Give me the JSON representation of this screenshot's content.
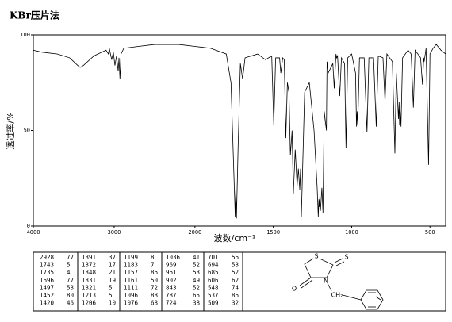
{
  "chart_data": {
    "type": "line",
    "title": "KBr压片法",
    "xlabel": "波数/cm⁻¹",
    "ylabel": "透过率/%",
    "xlim": [
      4000,
      400
    ],
    "xbreak": 2000,
    "xticks": [
      4000,
      3000,
      2000,
      1500,
      1000,
      500
    ],
    "ylim": [
      0,
      100
    ],
    "yticks": [
      0,
      50,
      100
    ],
    "color": "#000000",
    "x": [
      4000,
      3900,
      3700,
      3550,
      3450,
      3420,
      3380,
      3250,
      3100,
      3070,
      3060,
      3030,
      3010,
      2990,
      2970,
      2950,
      2940,
      2928,
      2915,
      2880,
      2700,
      2500,
      2200,
      2000,
      1900,
      1800,
      1770,
      1743,
      1739,
      1735,
      1725,
      1710,
      1696,
      1680,
      1600,
      1550,
      1510,
      1497,
      1485,
      1460,
      1452,
      1440,
      1430,
      1420,
      1410,
      1400,
      1391,
      1380,
      1372,
      1360,
      1348,
      1340,
      1331,
      1326,
      1321,
      1300,
      1270,
      1240,
      1220,
      1213,
      1209,
      1206,
      1203,
      1199,
      1190,
      1183,
      1175,
      1161,
      1157,
      1150,
      1120,
      1111,
      1100,
      1096,
      1090,
      1076,
      1065,
      1045,
      1036,
      1025,
      1000,
      975,
      969,
      965,
      961,
      950,
      920,
      902,
      890,
      860,
      843,
      830,
      800,
      787,
      775,
      740,
      724,
      715,
      701,
      697,
      694,
      690,
      685,
      675,
      640,
      620,
      606,
      595,
      560,
      548,
      540,
      537,
      525,
      509,
      500,
      480,
      460,
      430,
      400
    ],
    "values": [
      92,
      91,
      90,
      88,
      84,
      83,
      84,
      89,
      92,
      90,
      93,
      87,
      91,
      84,
      89,
      81,
      88,
      77,
      90,
      93,
      94,
      95,
      95,
      94,
      93,
      90,
      75,
      5,
      20,
      4,
      40,
      85,
      77,
      88,
      90,
      87,
      89,
      53,
      88,
      88,
      80,
      88,
      87,
      46,
      75,
      70,
      37,
      50,
      17,
      40,
      21,
      30,
      19,
      30,
      5,
      70,
      75,
      50,
      20,
      5,
      14,
      10,
      15,
      8,
      20,
      7,
      60,
      50,
      86,
      80,
      85,
      72,
      90,
      88,
      89,
      68,
      88,
      85,
      41,
      88,
      90,
      80,
      52,
      60,
      53,
      88,
      88,
      49,
      88,
      88,
      52,
      89,
      88,
      65,
      90,
      86,
      38,
      80,
      56,
      65,
      53,
      60,
      52,
      88,
      92,
      90,
      62,
      92,
      88,
      74,
      88,
      86,
      93,
      32,
      90,
      93,
      95,
      92,
      90
    ]
  },
  "peak_table": {
    "columns": [
      [
        [
          2928,
          77
        ],
        [
          1743,
          5
        ],
        [
          1735,
          4
        ],
        [
          1696,
          77
        ],
        [
          1497,
          53
        ],
        [
          1452,
          80
        ],
        [
          1420,
          46
        ]
      ],
      [
        [
          1391,
          37
        ],
        [
          1372,
          17
        ],
        [
          1348,
          21
        ],
        [
          1331,
          19
        ],
        [
          1321,
          5
        ],
        [
          1213,
          5
        ],
        [
          1206,
          10
        ]
      ],
      [
        [
          1199,
          8
        ],
        [
          1183,
          7
        ],
        [
          1157,
          86
        ],
        [
          1161,
          50
        ],
        [
          1111,
          72
        ],
        [
          1096,
          88
        ],
        [
          1076,
          68
        ]
      ],
      [
        [
          1036,
          41
        ],
        [
          969,
          52
        ],
        [
          961,
          53
        ],
        [
          902,
          49
        ],
        [
          843,
          52
        ],
        [
          787,
          65
        ],
        [
          724,
          38
        ]
      ],
      [
        [
          701,
          56
        ],
        [
          694,
          53
        ],
        [
          685,
          52
        ],
        [
          606,
          62
        ],
        [
          548,
          74
        ],
        [
          537,
          86
        ],
        [
          509,
          32
        ]
      ]
    ]
  },
  "structure": {
    "atoms": [
      "S",
      "S",
      "N",
      "O",
      "CH₂"
    ]
  }
}
